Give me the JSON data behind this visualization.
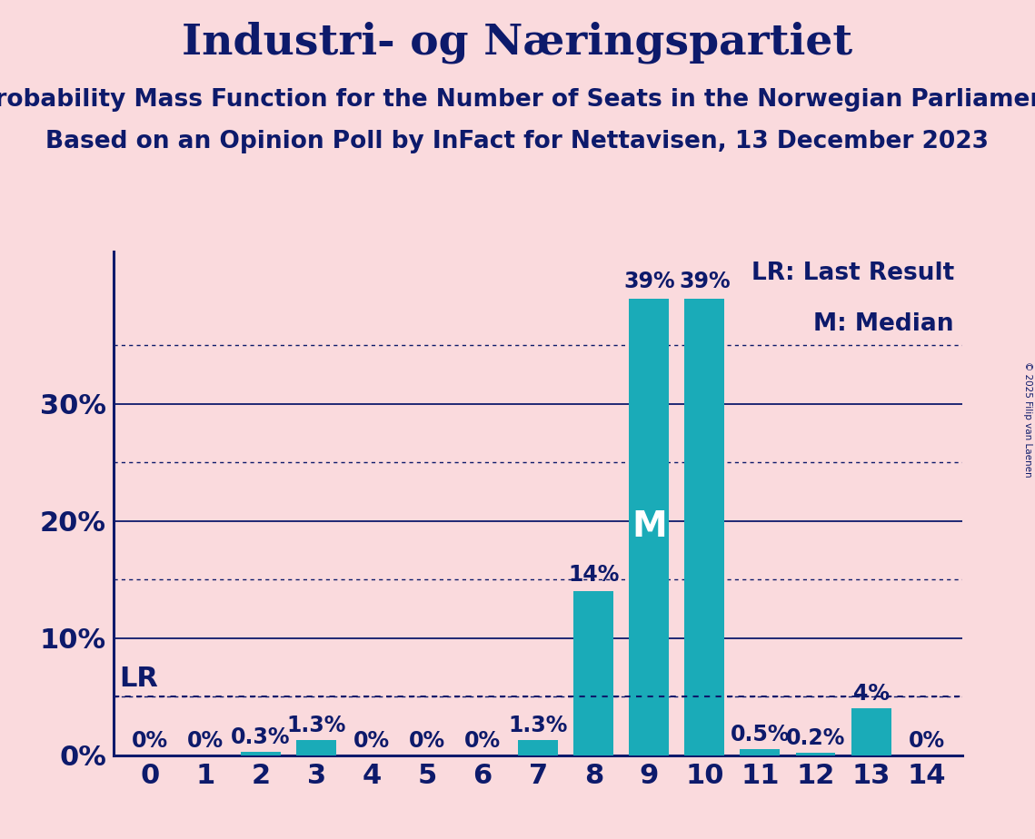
{
  "title": "Industri- og Næringspartiet",
  "subtitle1": "Probability Mass Function for the Number of Seats in the Norwegian Parliament",
  "subtitle2": "Based on an Opinion Poll by InFact for Nettavisen, 13 December 2023",
  "copyright": "© 2025 Filip van Laenen",
  "categories": [
    0,
    1,
    2,
    3,
    4,
    5,
    6,
    7,
    8,
    9,
    10,
    11,
    12,
    13,
    14
  ],
  "values": [
    0.0,
    0.0,
    0.3,
    1.3,
    0.0,
    0.0,
    0.0,
    1.3,
    14.0,
    39.0,
    39.0,
    0.5,
    0.2,
    4.0,
    0.0
  ],
  "bar_color": "#1AABB8",
  "background_color": "#FADADD",
  "text_color": "#0D1A6B",
  "dotted_line_color": "#0D1A6B",
  "solid_line_color": "#0D1A6B",
  "lr_value": 5.0,
  "median_seat": 9,
  "ylim": [
    0,
    43
  ],
  "yticks": [
    0,
    10,
    20,
    30
  ],
  "ytick_labels": [
    "0%",
    "10%",
    "20%",
    "30%"
  ],
  "dotted_yticks": [
    5,
    15,
    25,
    35
  ],
  "title_fontsize": 34,
  "subtitle_fontsize": 19,
  "axis_tick_fontsize": 22,
  "bar_label_fontsize": 17,
  "legend_fontsize": 19,
  "lr_label_fontsize": 22,
  "median_fontsize": 28
}
